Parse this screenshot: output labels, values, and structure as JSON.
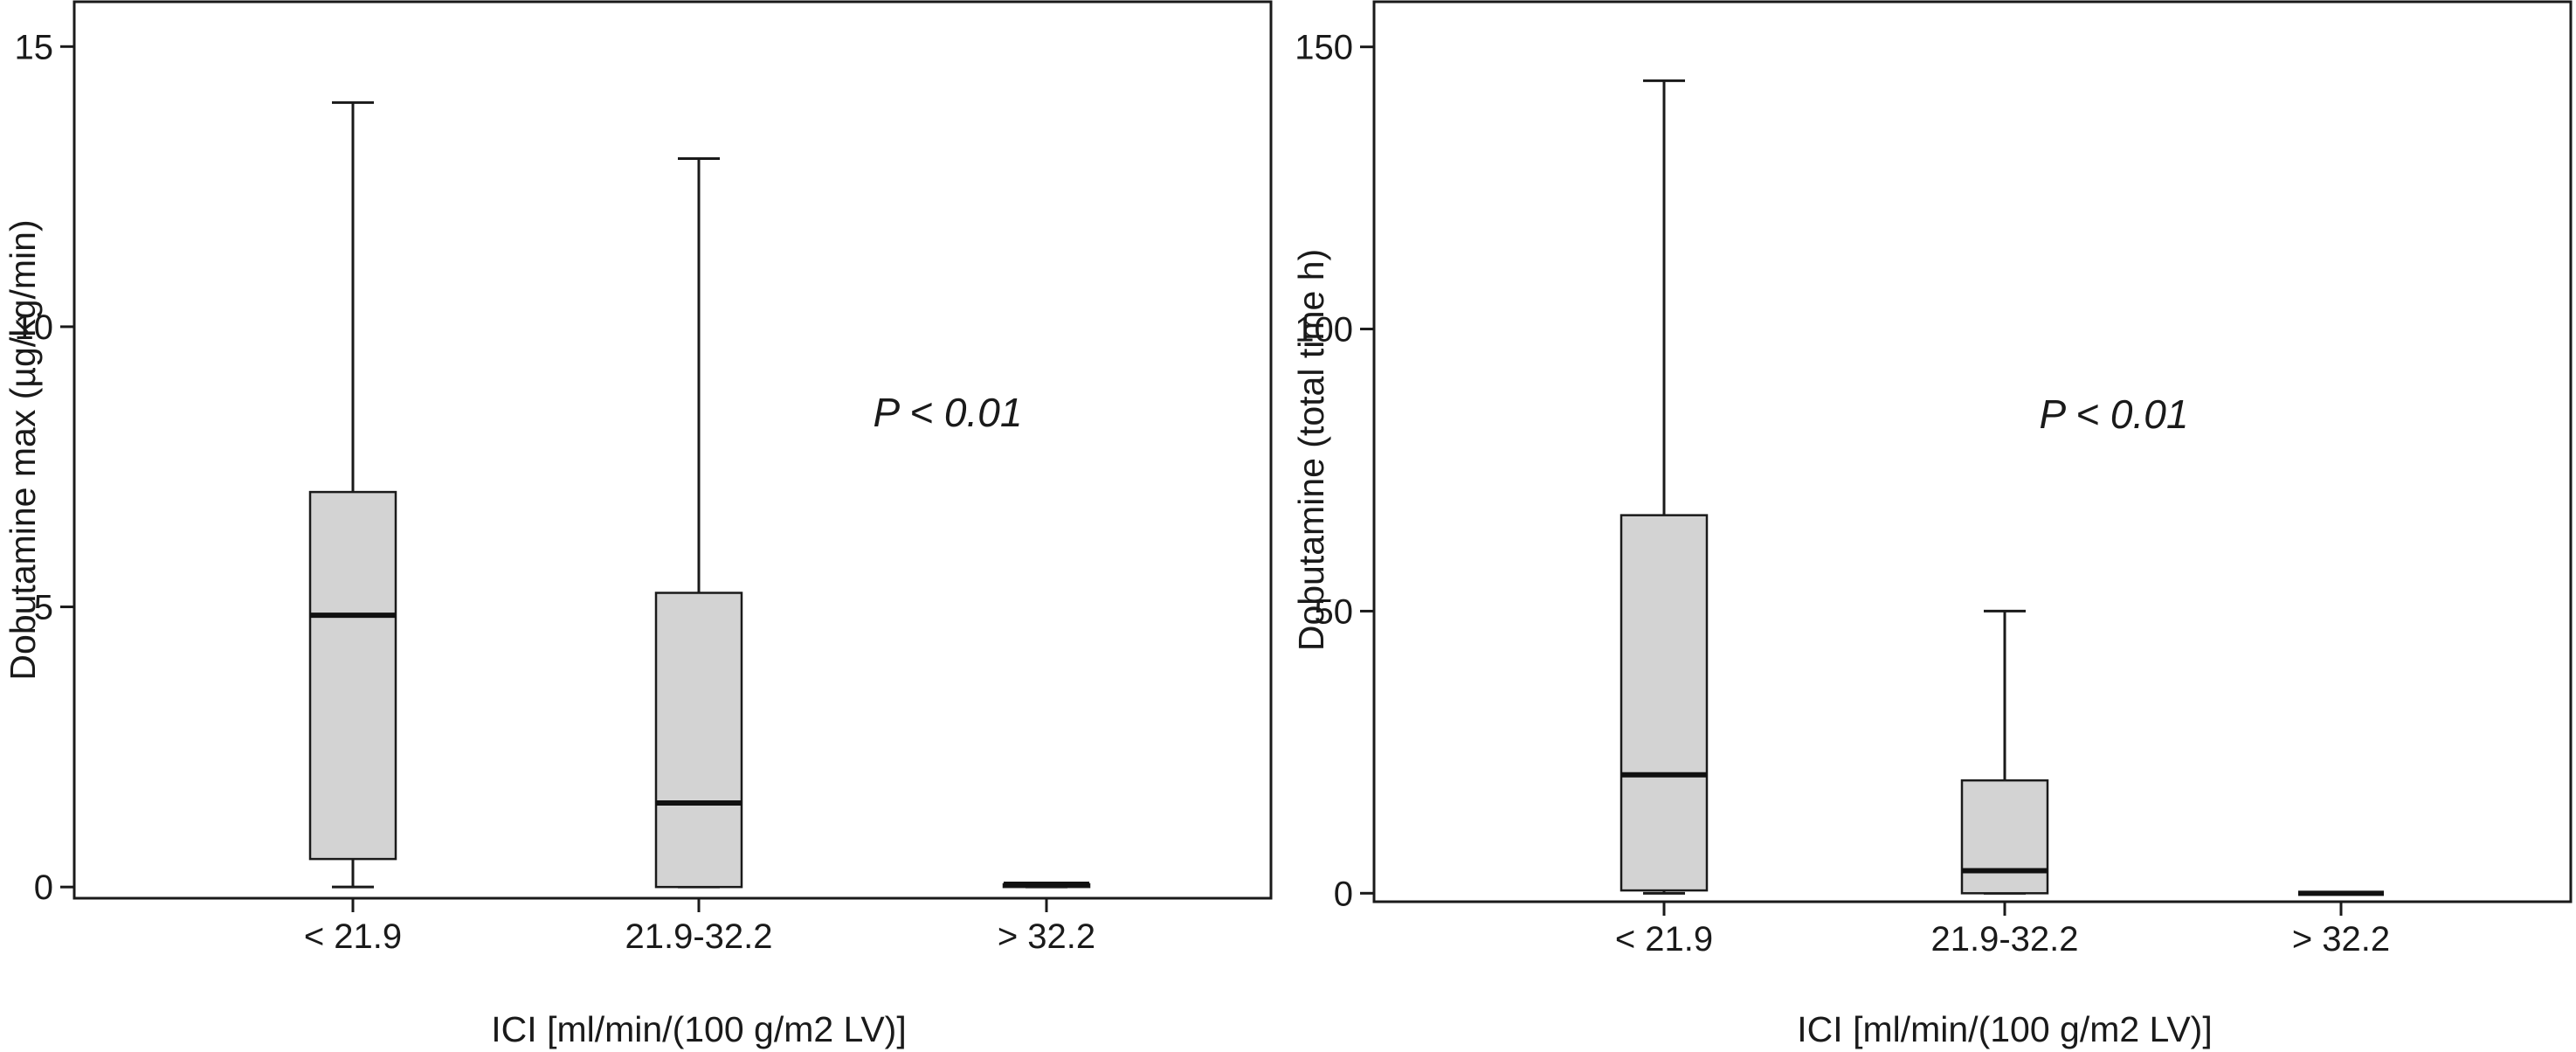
{
  "chart_data": [
    {
      "type": "box",
      "title": "",
      "xlabel": "ICI [ml/min/(100 g/m2 LV)]",
      "ylabel": "Dobutamine max (µg/kg/min)",
      "ylim": [
        -0.2,
        15.8
      ],
      "yticks": [
        0,
        5,
        10,
        15
      ],
      "ytick_labels": [
        "0",
        "5",
        "10",
        "15"
      ],
      "categories": [
        "< 21.9",
        "21.9-32.2",
        "> 32.2"
      ],
      "boxes": [
        {
          "category": "< 21.9",
          "whisker_low": 0.0,
          "q1": 0.5,
          "median": 4.85,
          "q3": 7.05,
          "whisker_high": 14.0
        },
        {
          "category": "21.9-32.2",
          "whisker_low": 0.0,
          "q1": 0.0,
          "median": 1.5,
          "q3": 5.25,
          "whisker_high": 13.0
        },
        {
          "category": "> 32.2",
          "whisker_low": 0.0,
          "q1": 0.0,
          "median": 0.05,
          "q3": 0.05,
          "whisker_high": 0.05
        }
      ],
      "annotation": "P < 0.01",
      "grid": false,
      "box_color": "#d3d3d3"
    },
    {
      "type": "box",
      "title": "",
      "xlabel": "ICI [ml/min/(100 g/m2 LV)]",
      "ylabel": "Dobutamine (total time h)",
      "ylim": [
        -1.5,
        158
      ],
      "yticks": [
        0,
        50,
        100,
        150
      ],
      "ytick_labels": [
        "0",
        "50",
        "100",
        "150"
      ],
      "categories": [
        "< 21.9",
        "21.9-32.2",
        "> 32.2"
      ],
      "boxes": [
        {
          "category": "< 21.9",
          "whisker_low": 0.0,
          "q1": 0.5,
          "median": 21.0,
          "q3": 67.0,
          "whisker_high": 144.0
        },
        {
          "category": "21.9-32.2",
          "whisker_low": 0.0,
          "q1": 0.0,
          "median": 4.0,
          "q3": 20.0,
          "whisker_high": 50.0
        },
        {
          "category": "> 32.2",
          "whisker_low": 0.0,
          "q1": 0.0,
          "median": 0.0,
          "q3": 0.0,
          "whisker_high": 0.0
        }
      ],
      "annotation": "P < 0.01",
      "grid": false,
      "box_color": "#d3d3d3"
    }
  ]
}
